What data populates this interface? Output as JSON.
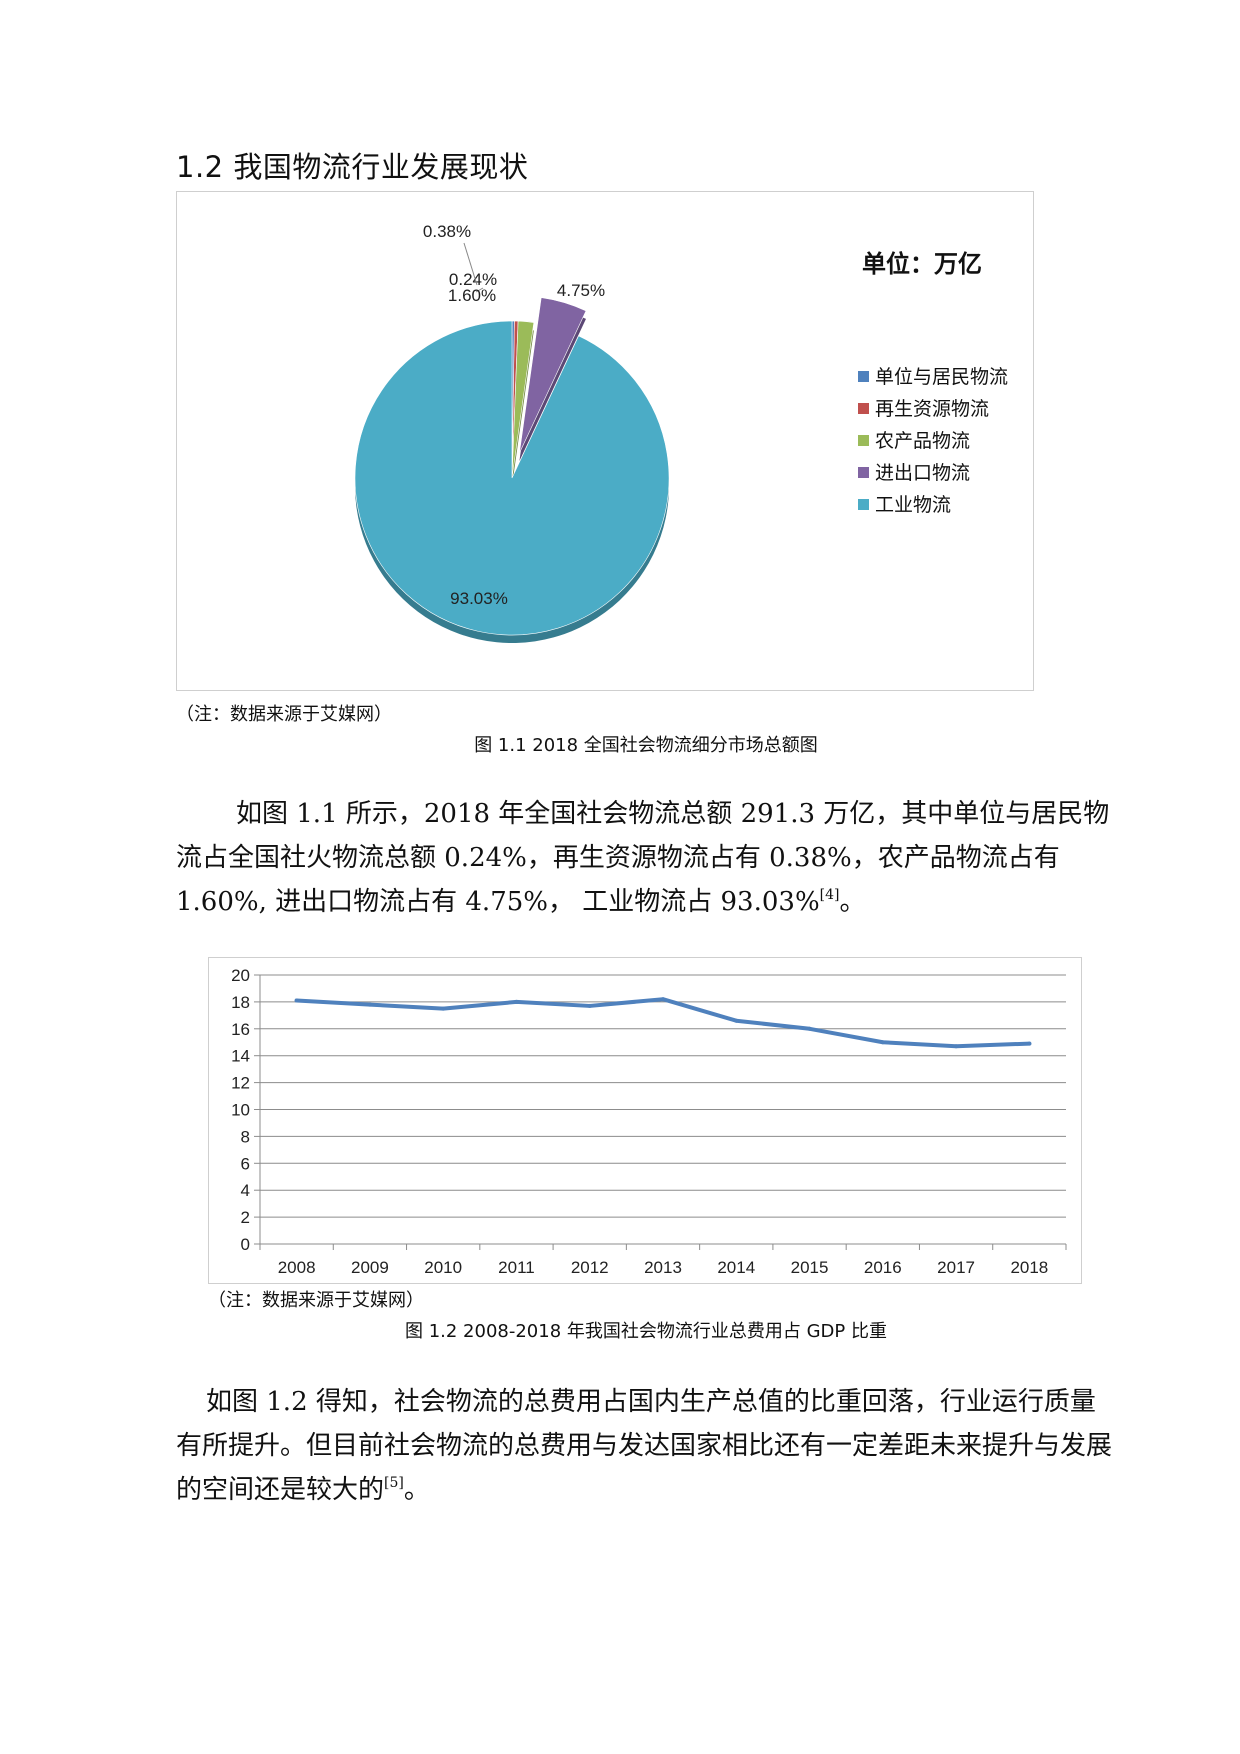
{
  "section_title": "1.2 我国物流行业发展现状",
  "figure1": {
    "note": "（注：数据来源于艾媒网）",
    "caption": "图 1.1 2018 全国社会物流细分市场总额图",
    "unit_label": "单位：万亿",
    "chart_data": {
      "type": "pie",
      "title": "",
      "unit": "单位：万亿",
      "legend_position": "right",
      "slices": [
        {
          "name": "单位与居民物流",
          "value": 0.24,
          "label": "0.24%",
          "color": "#4F81BD"
        },
        {
          "name": "再生资源物流",
          "value": 0.38,
          "label": "0.38%",
          "color": "#C0504D"
        },
        {
          "name": "农产品物流",
          "value": 1.6,
          "label": "1.60%",
          "color": "#9BBB59"
        },
        {
          "name": "进出口物流",
          "value": 4.75,
          "label": "4.75%",
          "color": "#8064A2"
        },
        {
          "name": "工业物流",
          "value": 93.03,
          "label": "93.03%",
          "color": "#4BACC6"
        }
      ]
    }
  },
  "paragraph1": {
    "text": "如图 1.1 所示，2018 年全国社会物流总额 291.3 万亿，其中单位与居民物流占全国社火物流总额 0.24%，再生资源物流占有 0.38%，农产品物流占有 1.60%, 进出口物流占有 4.75%， 工业物流占 93.03%",
    "ref": "[4]",
    "end": "。"
  },
  "figure2": {
    "note": "（注：数据来源于艾媒网）",
    "caption": "图 1.2 2008-2018 年我国社会物流行业总费用占 GDP 比重",
    "chart_data": {
      "type": "line",
      "title": "",
      "xlabel": "",
      "ylabel": "",
      "grid": true,
      "ylim": [
        0,
        20
      ],
      "yticks": [
        0,
        2,
        4,
        6,
        8,
        10,
        12,
        14,
        16,
        18,
        20
      ],
      "categories": [
        "2008",
        "2009",
        "2010",
        "2011",
        "2012",
        "2013",
        "2014",
        "2015",
        "2016",
        "2017",
        "2018"
      ],
      "series": [
        {
          "values": [
            18.1,
            17.8,
            17.5,
            18.0,
            17.7,
            18.2,
            16.6,
            16.0,
            15.0,
            14.7,
            14.9
          ],
          "color": "#4F81BD"
        }
      ]
    }
  },
  "paragraph2": {
    "text": "如图 1.2 得知，社会物流的总费用占国内生产总值的比重回落，行业运行质量有所提升。但目前社会物流的总费用与发达国家相比还有一定差距未来提升与发展的空间还是较大的",
    "ref": "[5]",
    "end": "。"
  }
}
